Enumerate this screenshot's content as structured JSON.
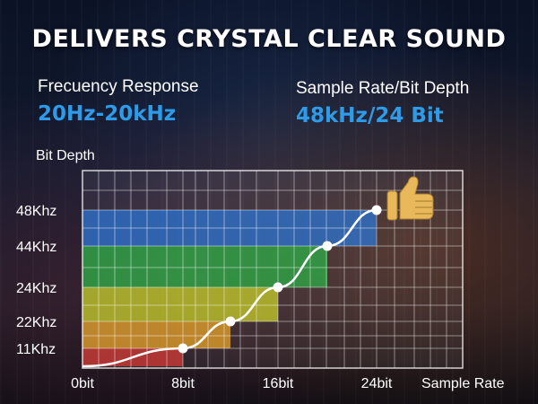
{
  "headline": "DELIVERS CRYSTAL CLEAR SOUND",
  "specs": [
    {
      "label": "Frecuency Response",
      "value": "20Hz-20kHz"
    },
    {
      "label": "Sample Rate/Bit Depth",
      "value": "48kHz/24 Bit"
    }
  ],
  "icon": "thumbs-up-icon",
  "colors": {
    "accent": "#2e9be8",
    "band_48": "#1f6fd6",
    "band_44": "#1fae3b",
    "band_24": "#c9d21a",
    "band_22": "#f0a51c",
    "band_11": "#d9302a",
    "curve": "#ffffff",
    "thumb": "#e8b85a"
  },
  "chart_data": {
    "type": "line",
    "title": "",
    "ylabel": "Bit Depth",
    "xlabel": "Sample Rate",
    "x_ticks": [
      {
        "value": 0,
        "label": "0bit"
      },
      {
        "value": 8,
        "label": "8bit"
      },
      {
        "value": 16,
        "label": "16bit"
      },
      {
        "value": 24,
        "label": "24bit"
      }
    ],
    "y_ticks": [
      {
        "value": 11,
        "label": "11Khz"
      },
      {
        "value": 22,
        "label": "22Khz"
      },
      {
        "value": 24,
        "label": "24Khz"
      },
      {
        "value": 44,
        "label": "44Khz"
      },
      {
        "value": 48,
        "label": "48Khz"
      }
    ],
    "series": [
      {
        "name": "curve",
        "points": [
          [
            0,
            0
          ],
          [
            8,
            11
          ],
          [
            12,
            22
          ],
          [
            16,
            24
          ],
          [
            20,
            44
          ],
          [
            24,
            48
          ]
        ]
      }
    ],
    "markers": [
      [
        8,
        11
      ],
      [
        12,
        22
      ],
      [
        16,
        24
      ],
      [
        20,
        44
      ],
      [
        24,
        48
      ]
    ],
    "bands": [
      {
        "y": 11,
        "x_end": 8,
        "color": "#d9302a"
      },
      {
        "y": 22,
        "x_end": 12,
        "color": "#f0a51c"
      },
      {
        "y": 24,
        "x_end": 16,
        "color": "#c9d21a"
      },
      {
        "y": 44,
        "x_end": 20,
        "color": "#1fae3b"
      },
      {
        "y": 48,
        "x_end": 24,
        "color": "#1f6fd6"
      }
    ]
  }
}
